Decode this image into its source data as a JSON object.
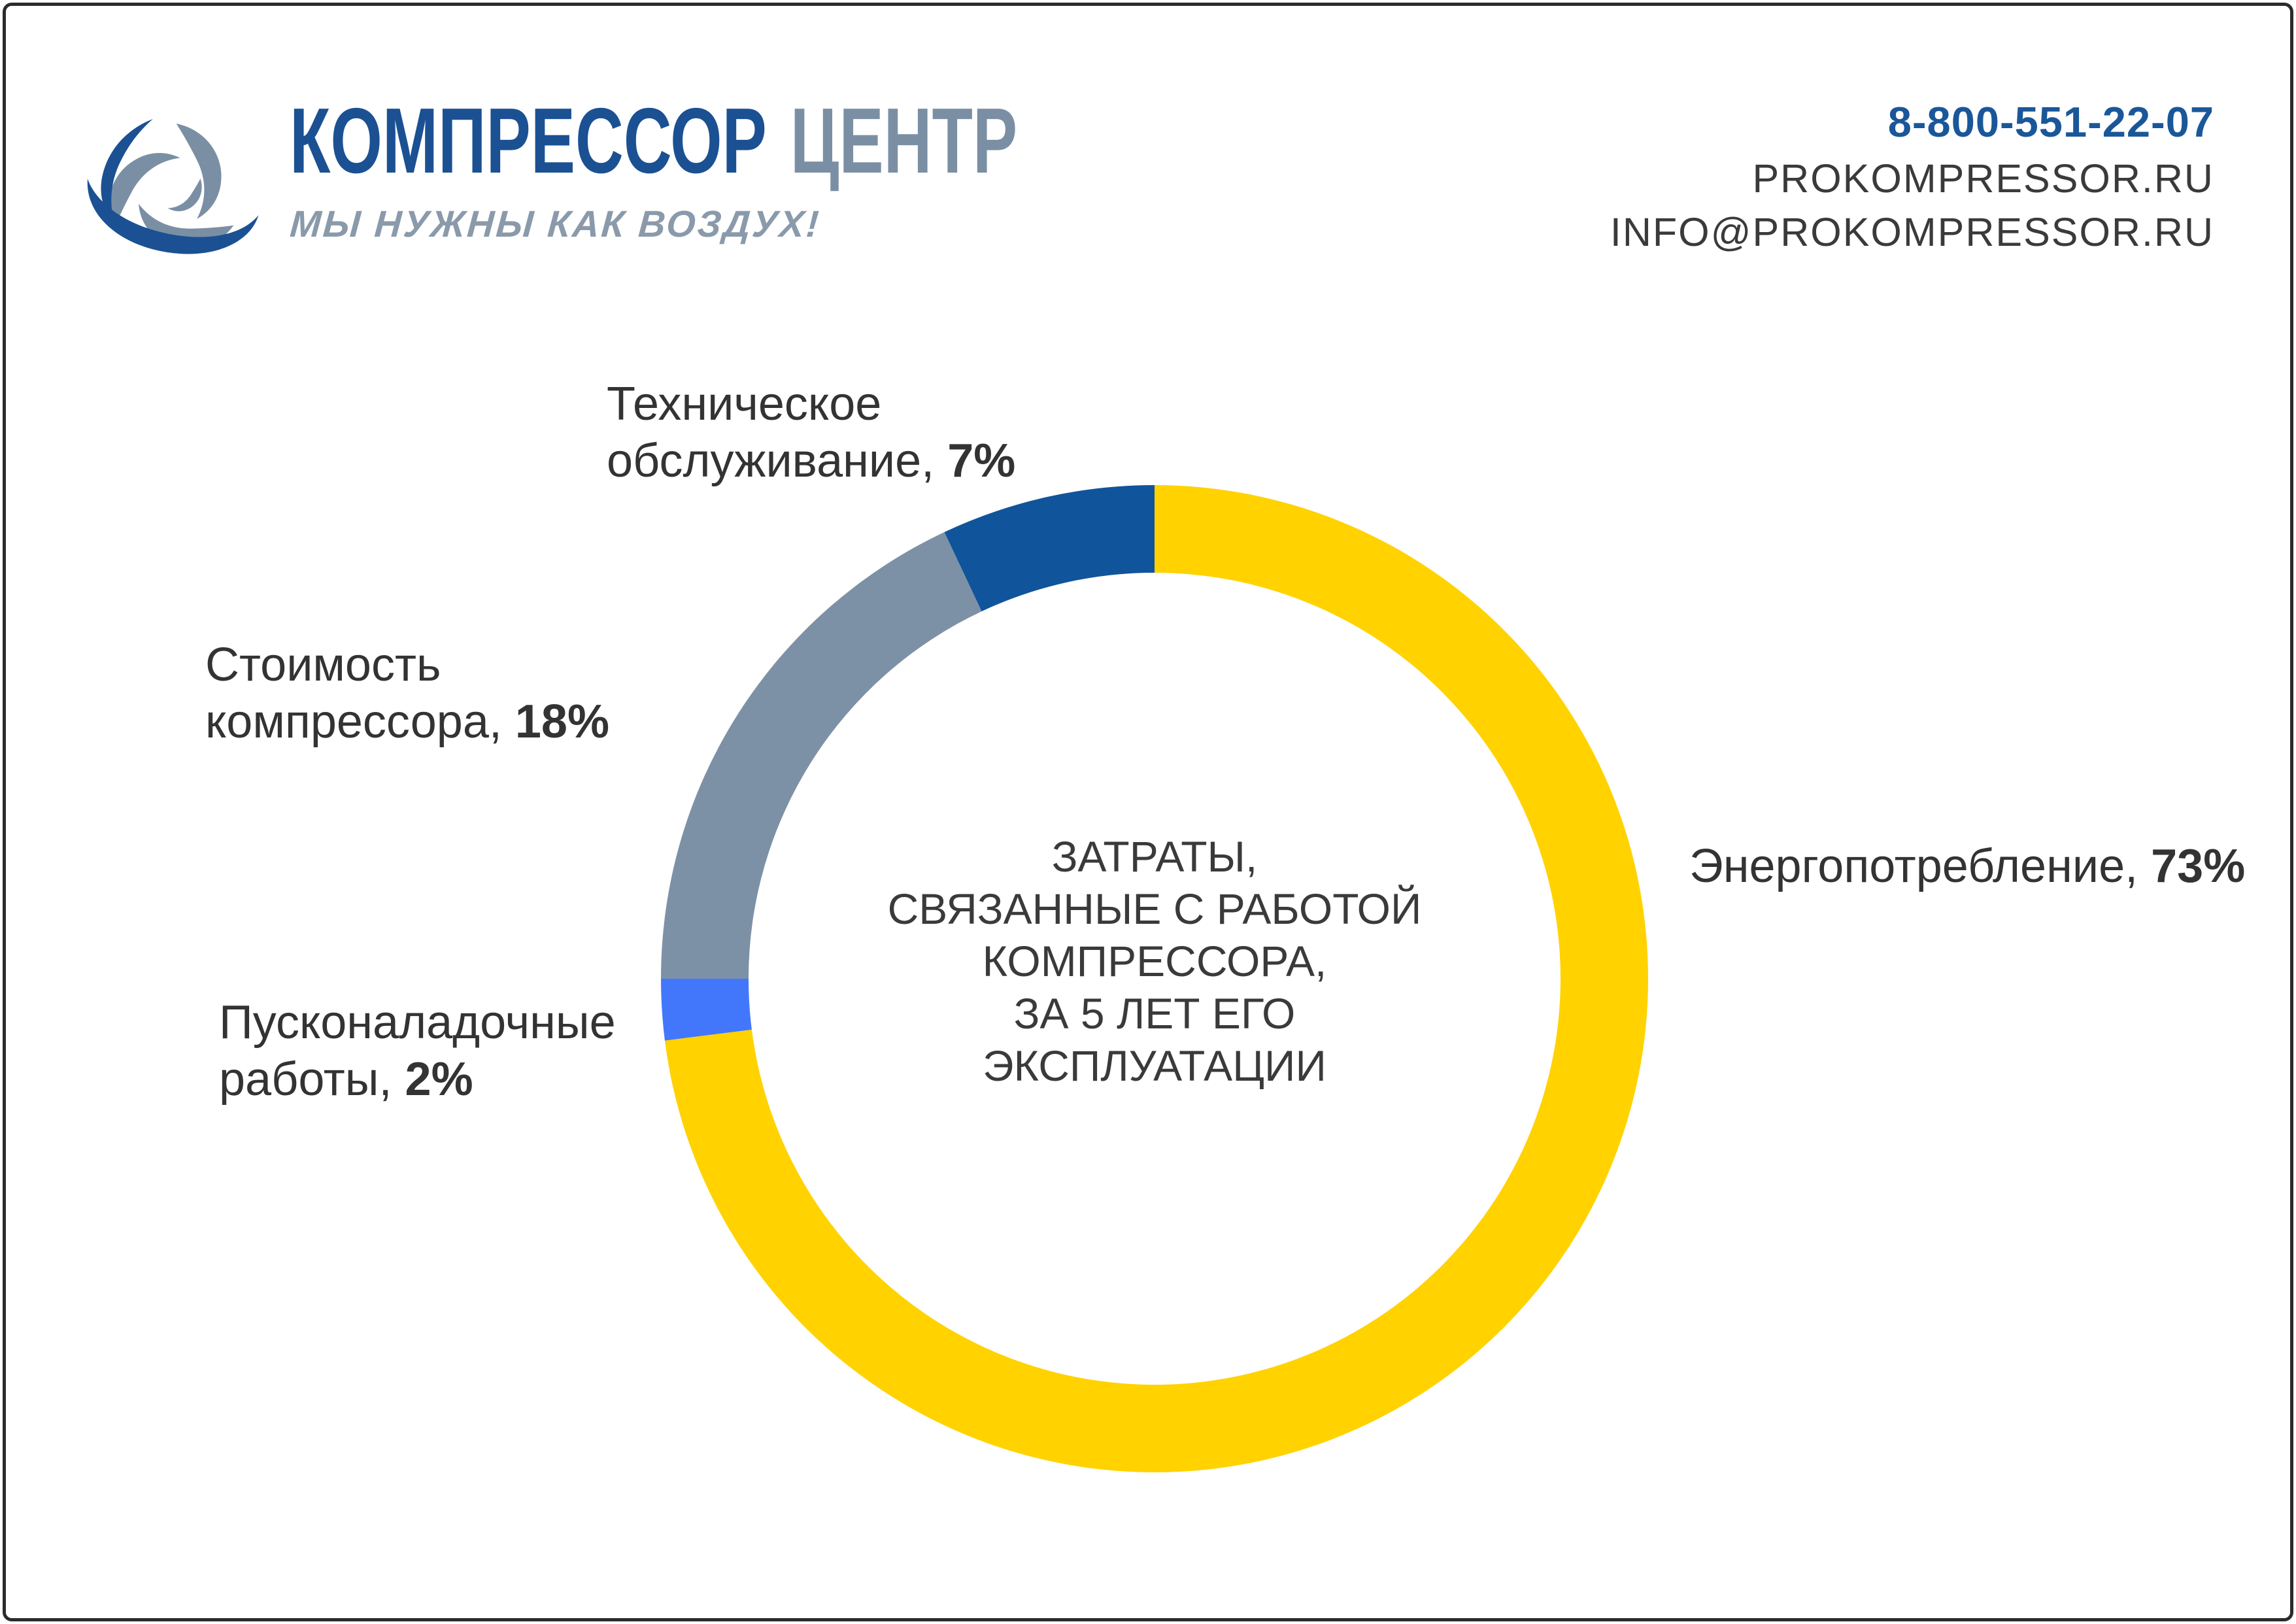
{
  "header": {
    "logo": {
      "brand_primary": "КОМПРЕССОР",
      "brand_secondary": "ЦЕНТР",
      "tagline": "МЫ НУЖНЫ КАК ВОЗДУХ!"
    },
    "contact": {
      "phone": "8-800-551-22-07",
      "website": "PROKOMPRESSOR.RU",
      "email": "INFO@PROKOMPRESSOR.RU"
    }
  },
  "chart_data": {
    "type": "pie",
    "subtype": "donut",
    "title_lines": [
      "ЗАТРАТЫ,",
      "СВЯЗАННЫЕ С РАБОТОЙ",
      "КОМПРЕССОРА,",
      "ЗА 5 ЛЕТ ЕГО",
      "ЭКСПЛУАТАЦИИ"
    ],
    "start_angle_deg": 0,
    "direction": "clockwise",
    "legend_position": "callouts",
    "slices": [
      {
        "key": "energy",
        "label": "Энергопотребление",
        "value_pct": 73,
        "color": "#FFD200"
      },
      {
        "key": "commissioning",
        "label": "Пусконаладочные работы",
        "value_pct": 2,
        "color": "#4377FB"
      },
      {
        "key": "compressor-cost",
        "label": "Стоимость компрессора",
        "value_pct": 18,
        "color": "#7D91A6"
      },
      {
        "key": "maintenance",
        "label": "Техническое обслуживание",
        "value_pct": 7,
        "color": "#10549B"
      }
    ],
    "callouts": {
      "tech": {
        "line1": "Техническое",
        "line2": "обслуживание, ",
        "value": "7%"
      },
      "cost": {
        "line1": "Стоимость",
        "line2": "компрессора, ",
        "value": "18%"
      },
      "setup": {
        "line1": "Пусконаладочные",
        "line2": "работы, ",
        "value": "2%"
      },
      "energy": {
        "line1": "Энергопотребление, ",
        "value": "73%"
      }
    }
  },
  "colors": {
    "brand_blue": "#1B5193",
    "brand_gray": "#7B8FA4",
    "phone_blue": "#1A5799",
    "text_dark": "#3A3A3A",
    "border": "#2B2B2B"
  }
}
